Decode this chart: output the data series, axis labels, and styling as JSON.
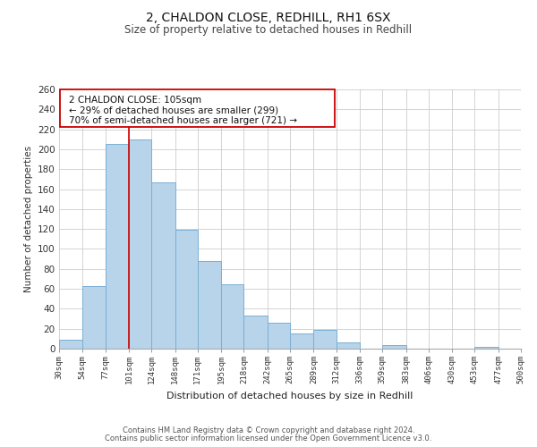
{
  "title1": "2, CHALDON CLOSE, REDHILL, RH1 6SX",
  "title2": "Size of property relative to detached houses in Redhill",
  "xlabel": "Distribution of detached houses by size in Redhill",
  "ylabel": "Number of detached properties",
  "bar_edges": [
    30,
    54,
    77,
    101,
    124,
    148,
    171,
    195,
    218,
    242,
    265,
    289,
    312,
    336,
    359,
    383,
    406,
    430,
    453,
    477,
    500
  ],
  "bar_heights": [
    9,
    63,
    205,
    210,
    167,
    119,
    88,
    65,
    33,
    26,
    15,
    19,
    6,
    0,
    4,
    0,
    0,
    0,
    2,
    0
  ],
  "bar_color": "#b8d4ea",
  "bar_edge_color": "#7aafd4",
  "property_line_x": 101,
  "property_line_color": "#cc0000",
  "ann_line1": "2 CHALDON CLOSE: 105sqm",
  "ann_line2": "← 29% of detached houses are smaller (299)",
  "ann_line3": "70% of semi-detached houses are larger (721) →",
  "ylim": [
    0,
    260
  ],
  "tick_labels": [
    "30sqm",
    "54sqm",
    "77sqm",
    "101sqm",
    "124sqm",
    "148sqm",
    "171sqm",
    "195sqm",
    "218sqm",
    "242sqm",
    "265sqm",
    "289sqm",
    "312sqm",
    "336sqm",
    "359sqm",
    "383sqm",
    "406sqm",
    "430sqm",
    "453sqm",
    "477sqm",
    "500sqm"
  ],
  "footer1": "Contains HM Land Registry data © Crown copyright and database right 2024.",
  "footer2": "Contains public sector information licensed under the Open Government Licence v3.0.",
  "background_color": "#ffffff",
  "grid_color": "#cccccc",
  "title1_fontsize": 10,
  "title2_fontsize": 8.5
}
